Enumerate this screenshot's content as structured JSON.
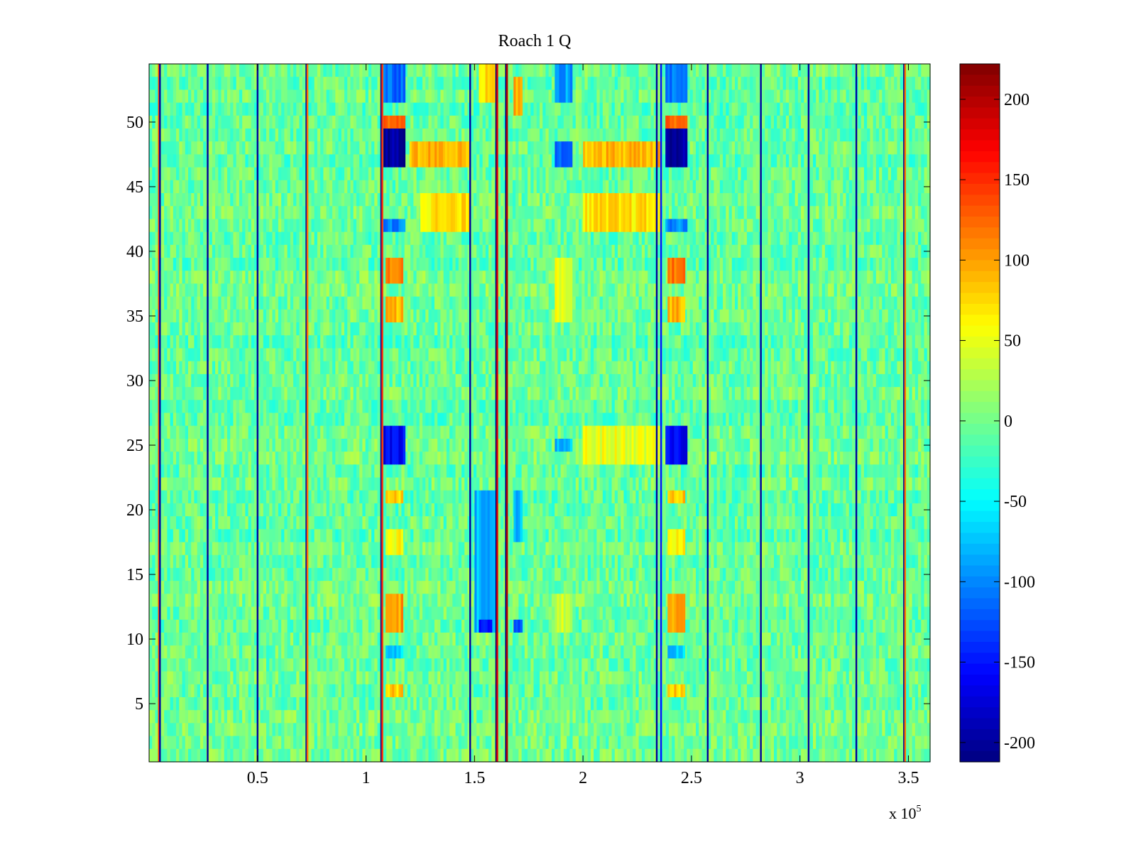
{
  "chart_data": {
    "type": "heatmap",
    "title": "Roach 1 Q",
    "xlabel": "",
    "ylabel": "",
    "x_exponent_label": "x 10",
    "x_exponent_power": "5",
    "xlim": [
      0,
      3.6
    ],
    "ylim": [
      0.5,
      54.5
    ],
    "x_ticks": [
      0.5,
      1,
      1.5,
      2,
      2.5,
      3,
      3.5
    ],
    "x_tick_labels": [
      "0.5",
      "1",
      "1.5",
      "2",
      "2.5",
      "3",
      "3.5"
    ],
    "y_ticks": [
      5,
      10,
      15,
      20,
      25,
      30,
      35,
      40,
      45,
      50
    ],
    "y_tick_labels": [
      "5",
      "10",
      "15",
      "20",
      "25",
      "30",
      "35",
      "40",
      "45",
      "50"
    ],
    "rows": 54,
    "color_range": [
      -212,
      222
    ],
    "colormap": "jet",
    "colorbar_ticks": [
      200,
      150,
      100,
      50,
      0,
      -50,
      -100,
      -150,
      -200
    ],
    "colorbar_tick_labels": [
      "200",
      "150",
      "100",
      "50",
      "0",
      "-50",
      "-100",
      "-150",
      "-200"
    ],
    "background_value": -5,
    "background_noise": 28,
    "vertical_lines": [
      {
        "x": 0.045,
        "value": 140
      },
      {
        "x": 0.05,
        "value": -200
      },
      {
        "x": 0.27,
        "value": -200
      },
      {
        "x": 0.5,
        "value": -200
      },
      {
        "x": 0.725,
        "value": -200
      },
      {
        "x": 0.73,
        "value": 120
      },
      {
        "x": 1.07,
        "value": -200
      },
      {
        "x": 1.075,
        "value": 150
      },
      {
        "x": 1.48,
        "value": -200
      },
      {
        "x": 1.6,
        "value": -212
      },
      {
        "x": 1.605,
        "value": 180
      },
      {
        "x": 1.645,
        "value": -212
      },
      {
        "x": 1.65,
        "value": 200
      },
      {
        "x": 2.34,
        "value": -200
      },
      {
        "x": 2.36,
        "value": -150
      },
      {
        "x": 2.575,
        "value": -200
      },
      {
        "x": 2.82,
        "value": -200
      },
      {
        "x": 3.04,
        "value": -200
      },
      {
        "x": 3.26,
        "value": -200
      },
      {
        "x": 3.48,
        "value": -200
      },
      {
        "x": 3.485,
        "value": 120
      }
    ],
    "blocks": [
      {
        "x0": 1.08,
        "x1": 1.18,
        "y0": 46.5,
        "y1": 49.5,
        "value": -200
      },
      {
        "x0": 1.08,
        "x1": 1.18,
        "y0": 49.5,
        "y1": 50.5,
        "value": 130
      },
      {
        "x0": 1.08,
        "x1": 1.18,
        "y0": 51.5,
        "y1": 54.5,
        "value": -110
      },
      {
        "x0": 1.08,
        "x1": 1.18,
        "y0": 41.5,
        "y1": 42.5,
        "value": -100
      },
      {
        "x0": 1.09,
        "x1": 1.17,
        "y0": 37.5,
        "y1": 39.5,
        "value": 120
      },
      {
        "x0": 1.09,
        "x1": 1.17,
        "y0": 34.5,
        "y1": 36.5,
        "value": 90
      },
      {
        "x0": 1.08,
        "x1": 1.18,
        "y0": 23.5,
        "y1": 26.5,
        "value": -160
      },
      {
        "x0": 1.09,
        "x1": 1.17,
        "y0": 20.5,
        "y1": 21.5,
        "value": 80
      },
      {
        "x0": 1.09,
        "x1": 1.17,
        "y0": 16.5,
        "y1": 18.5,
        "value": 60
      },
      {
        "x0": 1.09,
        "x1": 1.17,
        "y0": 10.5,
        "y1": 13.5,
        "value": 100
      },
      {
        "x0": 1.09,
        "x1": 1.17,
        "y0": 8.5,
        "y1": 9.5,
        "value": -70
      },
      {
        "x0": 1.09,
        "x1": 1.17,
        "y0": 5.5,
        "y1": 6.5,
        "value": 80
      },
      {
        "x0": 1.2,
        "x1": 1.48,
        "y0": 46.5,
        "y1": 48.5,
        "value": 90
      },
      {
        "x0": 1.25,
        "x1": 1.48,
        "y0": 41.5,
        "y1": 44.5,
        "value": 70
      },
      {
        "x0": 1.5,
        "x1": 1.6,
        "y0": 10.5,
        "y1": 21.5,
        "value": -80
      },
      {
        "x0": 1.52,
        "x1": 1.58,
        "y0": 10.5,
        "y1": 11.5,
        "value": -140
      },
      {
        "x0": 1.52,
        "x1": 1.6,
        "y0": 51.5,
        "y1": 54.5,
        "value": 70
      },
      {
        "x0": 1.68,
        "x1": 1.72,
        "y0": 50.5,
        "y1": 53.5,
        "value": 90
      },
      {
        "x0": 1.68,
        "x1": 1.72,
        "y0": 10.5,
        "y1": 11.5,
        "value": -130
      },
      {
        "x0": 1.68,
        "x1": 1.72,
        "y0": 17.5,
        "y1": 21.5,
        "value": -80
      },
      {
        "x0": 1.87,
        "x1": 1.95,
        "y0": 46.5,
        "y1": 48.5,
        "value": -110
      },
      {
        "x0": 1.87,
        "x1": 1.95,
        "y0": 51.5,
        "y1": 54.5,
        "value": -90
      },
      {
        "x0": 1.87,
        "x1": 1.95,
        "y0": 34.5,
        "y1": 39.5,
        "value": 50
      },
      {
        "x0": 1.87,
        "x1": 1.95,
        "y0": 10.5,
        "y1": 13.5,
        "value": 40
      },
      {
        "x0": 1.87,
        "x1": 1.95,
        "y0": 24.5,
        "y1": 25.5,
        "value": -80
      },
      {
        "x0": 2.0,
        "x1": 2.36,
        "y0": 46.5,
        "y1": 48.5,
        "value": 90
      },
      {
        "x0": 2.0,
        "x1": 2.36,
        "y0": 41.5,
        "y1": 44.5,
        "value": 70
      },
      {
        "x0": 2.0,
        "x1": 2.36,
        "y0": 23.5,
        "y1": 26.5,
        "value": 50
      },
      {
        "x0": 2.38,
        "x1": 2.48,
        "y0": 46.5,
        "y1": 49.5,
        "value": -200
      },
      {
        "x0": 2.38,
        "x1": 2.48,
        "y0": 49.5,
        "y1": 50.5,
        "value": 130
      },
      {
        "x0": 2.38,
        "x1": 2.48,
        "y0": 51.5,
        "y1": 54.5,
        "value": -110
      },
      {
        "x0": 2.38,
        "x1": 2.48,
        "y0": 41.5,
        "y1": 42.5,
        "value": -100
      },
      {
        "x0": 2.39,
        "x1": 2.47,
        "y0": 37.5,
        "y1": 39.5,
        "value": 120
      },
      {
        "x0": 2.39,
        "x1": 2.47,
        "y0": 34.5,
        "y1": 36.5,
        "value": 90
      },
      {
        "x0": 2.38,
        "x1": 2.48,
        "y0": 23.5,
        "y1": 26.5,
        "value": -160
      },
      {
        "x0": 2.39,
        "x1": 2.47,
        "y0": 20.5,
        "y1": 21.5,
        "value": 80
      },
      {
        "x0": 2.39,
        "x1": 2.47,
        "y0": 16.5,
        "y1": 18.5,
        "value": 60
      },
      {
        "x0": 2.39,
        "x1": 2.47,
        "y0": 10.5,
        "y1": 13.5,
        "value": 100
      },
      {
        "x0": 2.39,
        "x1": 2.47,
        "y0": 8.5,
        "y1": 9.5,
        "value": -70
      },
      {
        "x0": 2.39,
        "x1": 2.47,
        "y0": 5.5,
        "y1": 6.5,
        "value": 80
      }
    ]
  }
}
